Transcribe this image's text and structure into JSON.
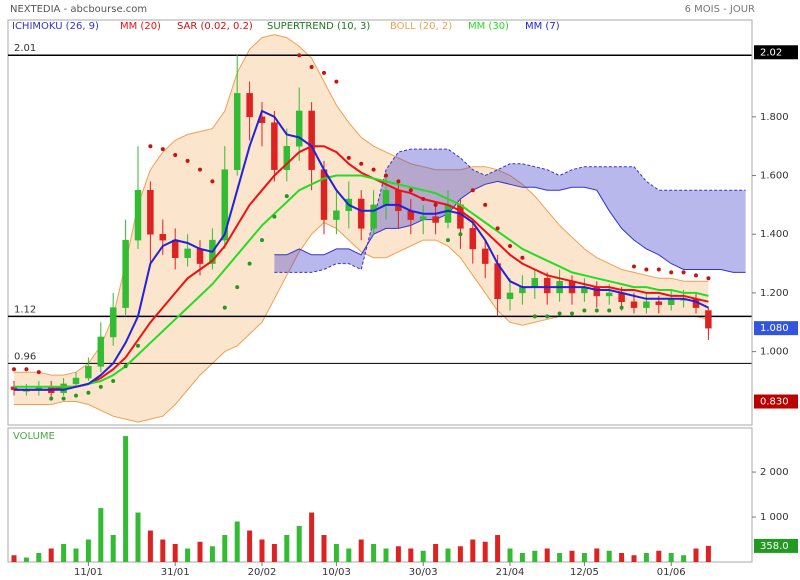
{
  "header": {
    "title": "NEXTEDIA - abcbourse.com",
    "period": "6 MOIS - JOUR"
  },
  "chart_data": [
    {
      "type": "candlestick",
      "categories": [
        null,
        null,
        null,
        null,
        null,
        null,
        "11/01",
        null,
        null,
        null,
        null,
        null,
        null,
        "31/01",
        null,
        null,
        null,
        null,
        null,
        null,
        "20/02",
        null,
        null,
        null,
        null,
        null,
        "10/03",
        null,
        null,
        null,
        null,
        null,
        null,
        "30/03",
        null,
        null,
        null,
        null,
        null,
        null,
        "21/04",
        null,
        null,
        null,
        null,
        null,
        "12/05",
        null,
        null,
        null,
        null,
        null,
        null,
        "01/06",
        null,
        null,
        null,
        null,
        null,
        null
      ],
      "open": [
        0.88,
        0.87,
        0.87,
        0.88,
        0.86,
        0.89,
        0.91,
        0.95,
        1.05,
        1.15,
        1.38,
        1.55,
        1.4,
        1.38,
        1.32,
        1.35,
        1.3,
        1.38,
        1.62,
        1.88,
        1.8,
        1.78,
        1.62,
        1.7,
        1.82,
        1.62,
        1.45,
        1.48,
        1.52,
        1.42,
        1.5,
        1.55,
        1.48,
        1.45,
        1.46,
        1.44,
        1.5,
        1.42,
        1.35,
        1.3,
        1.18,
        1.2,
        1.22,
        1.25,
        1.2,
        1.24,
        1.2,
        1.22,
        1.19,
        1.2,
        1.17,
        1.15,
        1.17,
        1.16,
        1.18,
        1.18,
        1.14,
        null,
        null,
        null
      ],
      "high": [
        0.9,
        0.89,
        0.9,
        0.9,
        0.91,
        0.93,
        0.98,
        1.1,
        1.2,
        1.45,
        1.7,
        1.58,
        1.45,
        1.42,
        1.4,
        1.38,
        1.42,
        1.7,
        2.01,
        1.92,
        1.85,
        1.82,
        1.76,
        1.9,
        1.85,
        1.65,
        1.55,
        1.58,
        1.55,
        1.55,
        1.6,
        1.58,
        1.52,
        1.5,
        1.5,
        1.55,
        1.52,
        1.45,
        1.38,
        1.33,
        1.25,
        1.26,
        1.28,
        1.27,
        1.28,
        1.26,
        1.25,
        1.24,
        1.23,
        1.22,
        1.2,
        1.2,
        1.19,
        1.21,
        1.21,
        1.2,
        1.15,
        null,
        null,
        null
      ],
      "low": [
        0.85,
        0.85,
        0.85,
        0.84,
        0.85,
        0.88,
        0.9,
        0.93,
        1.02,
        1.12,
        1.35,
        1.3,
        1.33,
        1.28,
        1.29,
        1.26,
        1.28,
        1.35,
        1.6,
        1.72,
        1.7,
        1.58,
        1.58,
        1.65,
        1.55,
        1.4,
        1.4,
        1.42,
        1.38,
        1.4,
        1.45,
        1.42,
        1.4,
        1.4,
        1.4,
        1.42,
        1.35,
        1.3,
        1.25,
        1.12,
        1.14,
        1.16,
        1.18,
        1.16,
        1.17,
        1.16,
        1.17,
        1.15,
        1.16,
        1.14,
        1.13,
        1.13,
        1.13,
        1.14,
        1.15,
        1.13,
        1.04,
        null,
        null,
        null
      ],
      "close": [
        0.87,
        0.87,
        0.88,
        0.86,
        0.89,
        0.91,
        0.95,
        1.05,
        1.15,
        1.38,
        1.55,
        1.4,
        1.38,
        1.32,
        1.35,
        1.3,
        1.38,
        1.62,
        1.88,
        1.8,
        1.78,
        1.62,
        1.7,
        1.82,
        1.62,
        1.45,
        1.48,
        1.52,
        1.42,
        1.5,
        1.55,
        1.48,
        1.45,
        1.46,
        1.44,
        1.5,
        1.42,
        1.35,
        1.3,
        1.18,
        1.2,
        1.22,
        1.25,
        1.2,
        1.24,
        1.2,
        1.22,
        1.19,
        1.2,
        1.17,
        1.15,
        1.17,
        1.16,
        1.18,
        1.18,
        1.15,
        1.08,
        null,
        null,
        null
      ],
      "up_color": "#33bb33",
      "down_color": "#dd2222",
      "ylim": [
        0.75,
        2.13
      ],
      "yticks": [
        {
          "value": 1.0,
          "label": "1.000"
        },
        {
          "value": 1.2,
          "label": "1.200"
        },
        {
          "value": 1.4,
          "label": "1.400"
        },
        {
          "value": 1.6,
          "label": "1.600"
        },
        {
          "value": 1.8,
          "label": "1.800"
        }
      ],
      "levels": [
        {
          "value": 2.01,
          "label": "2.01"
        },
        {
          "value": 1.12,
          "label": "1.12"
        },
        {
          "value": 0.96,
          "label": "0.96"
        }
      ],
      "price_tags": [
        {
          "value": 2.02,
          "label": "2.02",
          "color": "#000000"
        },
        {
          "value": 1.08,
          "label": "1.080",
          "color": "#3355dd"
        },
        {
          "value": 0.83,
          "label": "0.830",
          "color": "#bb0000"
        }
      ],
      "overlays": [
        {
          "kind": "cloud",
          "name": "ICHIMOKU (26, 9)",
          "color": "#3333cc",
          "span_a": [
            null,
            null,
            null,
            null,
            null,
            null,
            null,
            null,
            null,
            null,
            null,
            null,
            null,
            null,
            null,
            null,
            null,
            null,
            null,
            null,
            null,
            1.27,
            1.27,
            1.27,
            1.27,
            1.28,
            1.3,
            1.3,
            1.28,
            1.45,
            1.62,
            1.68,
            1.69,
            1.69,
            1.69,
            1.69,
            1.66,
            1.62,
            1.6,
            1.62,
            1.64,
            1.64,
            1.63,
            1.62,
            1.6,
            1.62,
            1.63,
            1.63,
            1.63,
            1.63,
            1.63,
            1.58,
            1.55,
            1.55,
            1.55,
            1.55,
            1.55,
            1.55,
            1.55,
            1.55
          ],
          "span_b": [
            null,
            null,
            null,
            null,
            null,
            null,
            null,
            null,
            null,
            null,
            null,
            null,
            null,
            null,
            null,
            null,
            null,
            null,
            null,
            null,
            null,
            1.33,
            1.33,
            1.35,
            1.33,
            1.33,
            1.35,
            1.35,
            1.33,
            1.4,
            1.42,
            1.42,
            1.43,
            1.45,
            1.45,
            1.47,
            1.52,
            1.55,
            1.57,
            1.58,
            1.57,
            1.56,
            1.56,
            1.55,
            1.55,
            1.56,
            1.56,
            1.55,
            1.48,
            1.42,
            1.38,
            1.35,
            1.33,
            1.3,
            1.28,
            1.28,
            1.28,
            1.28,
            1.27,
            1.27
          ]
        },
        {
          "kind": "line",
          "name": "MM (20)",
          "color": "#ee1111",
          "values": [
            0.87,
            0.87,
            0.87,
            0.87,
            0.88,
            0.88,
            0.89,
            0.91,
            0.94,
            0.98,
            1.04,
            1.1,
            1.15,
            1.2,
            1.25,
            1.28,
            1.31,
            1.36,
            1.43,
            1.5,
            1.55,
            1.6,
            1.64,
            1.68,
            1.7,
            1.7,
            1.68,
            1.64,
            1.61,
            1.59,
            1.57,
            1.55,
            1.54,
            1.52,
            1.51,
            1.5,
            1.48,
            1.45,
            1.41,
            1.37,
            1.33,
            1.3,
            1.28,
            1.26,
            1.25,
            1.24,
            1.23,
            1.22,
            1.22,
            1.21,
            1.21,
            1.2,
            1.2,
            1.19,
            1.19,
            1.18,
            1.17,
            null,
            null,
            null
          ]
        },
        {
          "kind": "sar",
          "name": "SAR (0.02, 0.2)",
          "color": "#cc1111",
          "below_color": "#229922",
          "values": [
            0.94,
            0.94,
            0.93,
            0.84,
            0.84,
            0.85,
            0.86,
            0.88,
            0.9,
            0.95,
            1.02,
            1.7,
            1.69,
            1.67,
            1.65,
            1.62,
            1.58,
            1.15,
            1.22,
            1.3,
            1.38,
            1.46,
            1.53,
            2.01,
            1.97,
            1.95,
            1.92,
            1.66,
            1.64,
            1.62,
            1.6,
            1.58,
            1.55,
            1.52,
            1.5,
            1.38,
            1.4,
            1.55,
            1.5,
            1.42,
            1.36,
            1.32,
            1.12,
            1.12,
            1.13,
            1.13,
            1.14,
            1.14,
            1.14,
            1.15,
            1.29,
            1.28,
            1.28,
            1.27,
            1.27,
            1.26,
            1.25,
            null,
            null,
            null
          ]
        },
        {
          "kind": "legend",
          "name": "SUPERTREND (10, 3)",
          "color": "#227722"
        },
        {
          "kind": "band",
          "name": "BOLL (20, 2)",
          "color": "#f0a050",
          "upper": [
            0.93,
            0.93,
            0.93,
            0.92,
            0.92,
            0.93,
            0.96,
            1.02,
            1.12,
            1.3,
            1.5,
            1.62,
            1.68,
            1.72,
            1.74,
            1.75,
            1.76,
            1.82,
            1.95,
            2.03,
            2.07,
            2.08,
            2.07,
            2.04,
            2.0,
            1.92,
            1.84,
            1.78,
            1.73,
            1.7,
            1.68,
            1.66,
            1.64,
            1.63,
            1.62,
            1.62,
            1.62,
            1.63,
            1.63,
            1.62,
            1.6,
            1.57,
            1.53,
            1.48,
            1.43,
            1.39,
            1.35,
            1.32,
            1.3,
            1.28,
            1.27,
            1.26,
            1.25,
            1.25,
            1.24,
            1.24,
            1.24,
            null,
            null,
            null
          ],
          "lower": [
            0.82,
            0.82,
            0.82,
            0.82,
            0.83,
            0.83,
            0.82,
            0.8,
            0.78,
            0.77,
            0.76,
            0.77,
            0.78,
            0.82,
            0.87,
            0.92,
            0.96,
            1.0,
            1.02,
            1.06,
            1.1,
            1.18,
            1.26,
            1.34,
            1.4,
            1.44,
            1.42,
            1.38,
            1.34,
            1.32,
            1.32,
            1.34,
            1.36,
            1.38,
            1.38,
            1.36,
            1.32,
            1.26,
            1.2,
            1.14,
            1.1,
            1.09,
            1.1,
            1.11,
            1.12,
            1.12,
            1.12,
            1.12,
            1.12,
            1.12,
            1.12,
            1.12,
            1.12,
            1.12,
            1.12,
            1.12,
            1.11,
            null,
            null,
            null
          ]
        },
        {
          "kind": "line",
          "name": "MM (30)",
          "color": "#22dd22",
          "values": [
            0.88,
            0.88,
            0.88,
            0.88,
            0.88,
            0.88,
            0.89,
            0.9,
            0.92,
            0.95,
            0.99,
            1.03,
            1.07,
            1.11,
            1.15,
            1.19,
            1.23,
            1.28,
            1.33,
            1.38,
            1.43,
            1.47,
            1.51,
            1.55,
            1.57,
            1.59,
            1.6,
            1.6,
            1.6,
            1.59,
            1.58,
            1.57,
            1.56,
            1.55,
            1.54,
            1.52,
            1.5,
            1.47,
            1.44,
            1.41,
            1.38,
            1.35,
            1.33,
            1.31,
            1.29,
            1.27,
            1.26,
            1.25,
            1.24,
            1.23,
            1.22,
            1.22,
            1.21,
            1.21,
            1.2,
            1.2,
            1.19,
            null,
            null,
            null
          ]
        },
        {
          "kind": "line",
          "name": "MM (7)",
          "color": "#2222dd",
          "values": [
            0.87,
            0.87,
            0.87,
            0.87,
            0.87,
            0.88,
            0.89,
            0.92,
            0.96,
            1.03,
            1.12,
            1.3,
            1.36,
            1.38,
            1.37,
            1.35,
            1.34,
            1.4,
            1.55,
            1.7,
            1.82,
            1.8,
            1.74,
            1.73,
            1.7,
            1.62,
            1.55,
            1.5,
            1.48,
            1.48,
            1.5,
            1.5,
            1.48,
            1.47,
            1.47,
            1.48,
            1.47,
            1.44,
            1.38,
            1.3,
            1.24,
            1.22,
            1.22,
            1.22,
            1.22,
            1.22,
            1.22,
            1.21,
            1.21,
            1.2,
            1.19,
            1.18,
            1.18,
            1.18,
            1.18,
            1.17,
            1.15,
            null,
            null,
            null
          ]
        }
      ]
    },
    {
      "type": "bar",
      "title": "VOLUME",
      "values": [
        150,
        100,
        200,
        300,
        400,
        300,
        500,
        1200,
        600,
        2800,
        1100,
        700,
        500,
        400,
        300,
        450,
        350,
        600,
        900,
        700,
        500,
        400,
        600,
        800,
        1100,
        600,
        400,
        300,
        500,
        400,
        300,
        350,
        300,
        250,
        400,
        300,
        350,
        500,
        450,
        600,
        300,
        200,
        250,
        300,
        200,
        250,
        200,
        300,
        250,
        200,
        150,
        200,
        250,
        200,
        150,
        300,
        358,
        null,
        null,
        null
      ],
      "last_label": "358.0",
      "last_color": "#229922",
      "ylim": [
        0,
        2980
      ],
      "yticks": [
        {
          "value": 1000,
          "label": "1 000"
        },
        {
          "value": 2000,
          "label": "2 000"
        }
      ]
    }
  ]
}
